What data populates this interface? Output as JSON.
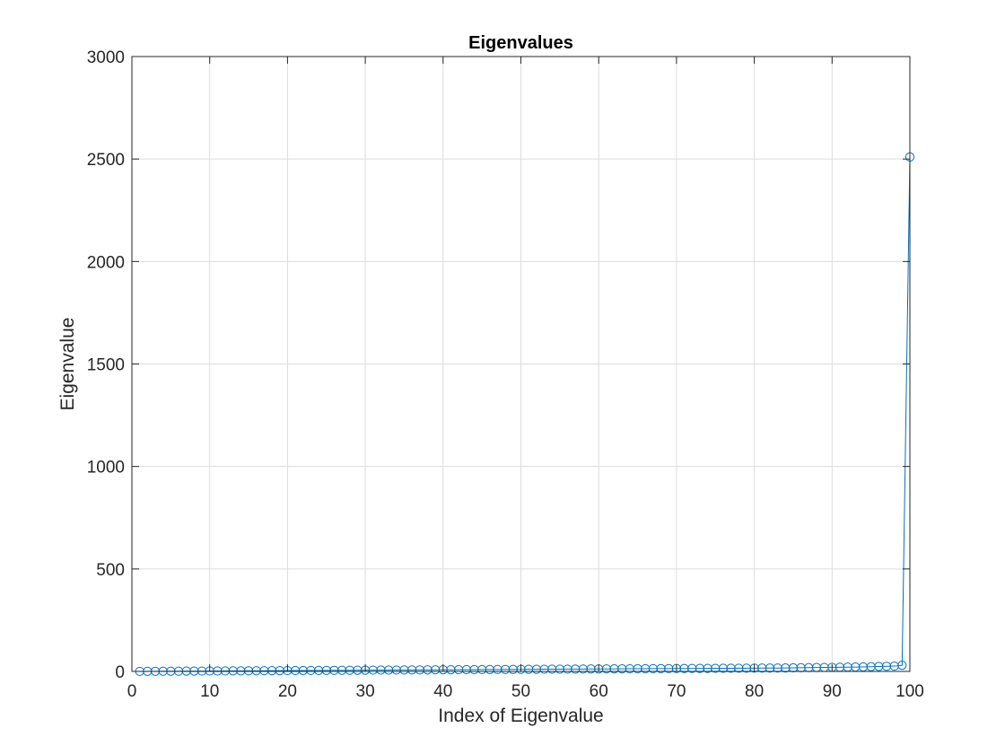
{
  "chart_data": {
    "type": "line",
    "title": "Eigenvalues",
    "xlabel": "Index of Eigenvalue",
    "ylabel": "Eigenvalue",
    "xlim": [
      0,
      100
    ],
    "ylim": [
      0,
      3000
    ],
    "xticks": [
      0,
      10,
      20,
      30,
      40,
      50,
      60,
      70,
      80,
      90,
      100
    ],
    "yticks": [
      0,
      500,
      1000,
      1500,
      2000,
      2500,
      3000
    ],
    "grid": true,
    "marker": "circle",
    "color": "#0072BD",
    "series": [
      {
        "x": [
          1,
          2,
          3,
          4,
          5,
          6,
          7,
          8,
          9,
          10,
          11,
          12,
          13,
          14,
          15,
          16,
          17,
          18,
          19,
          20,
          21,
          22,
          23,
          24,
          25,
          26,
          27,
          28,
          29,
          30,
          31,
          32,
          33,
          34,
          35,
          36,
          37,
          38,
          39,
          40,
          41,
          42,
          43,
          44,
          45,
          46,
          47,
          48,
          49,
          50,
          51,
          52,
          53,
          54,
          55,
          56,
          57,
          58,
          59,
          60,
          61,
          62,
          63,
          64,
          65,
          66,
          67,
          68,
          69,
          70,
          71,
          72,
          73,
          74,
          75,
          76,
          77,
          78,
          79,
          80,
          81,
          82,
          83,
          84,
          85,
          86,
          87,
          88,
          89,
          90,
          91,
          92,
          93,
          94,
          95,
          96,
          97,
          98,
          99,
          100
        ],
        "values": [
          0.3,
          0.5,
          0.7,
          0.9,
          1.1,
          1.3,
          1.5,
          1.7,
          1.9,
          2.1,
          2.3,
          2.5,
          2.7,
          2.9,
          3.1,
          3.3,
          3.5,
          3.7,
          3.9,
          4.1,
          4.3,
          4.5,
          4.7,
          4.9,
          5.1,
          5.3,
          5.5,
          5.7,
          5.9,
          6.1,
          6.3,
          6.5,
          6.7,
          6.9,
          7.1,
          7.3,
          7.5,
          7.7,
          7.9,
          8.1,
          8.3,
          8.5,
          8.7,
          8.9,
          9.1,
          9.3,
          9.5,
          9.7,
          9.9,
          10.1,
          10.3,
          10.5,
          10.7,
          10.9,
          11.1,
          11.3,
          11.5,
          11.7,
          11.9,
          12.1,
          12.3,
          12.5,
          12.7,
          12.9,
          13.1,
          13.3,
          13.5,
          13.7,
          13.9,
          14.1,
          14.3,
          14.5,
          14.7,
          14.9,
          15.1,
          15.3,
          15.5,
          15.7,
          15.9,
          16.1,
          16.3,
          16.5,
          16.7,
          17,
          17.5,
          18,
          18.5,
          19,
          19.5,
          20,
          20.5,
          21,
          21.5,
          22,
          23,
          24,
          25,
          26,
          30,
          2510
        ]
      }
    ]
  }
}
